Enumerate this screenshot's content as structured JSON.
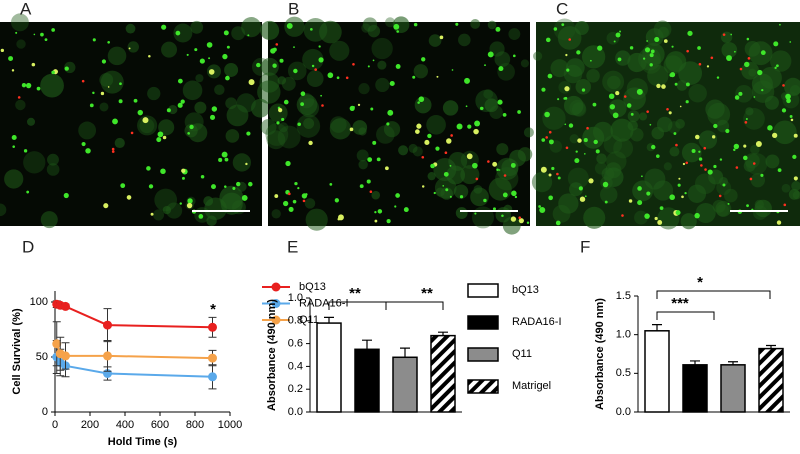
{
  "image_panels": [
    {
      "label": "A"
    },
    {
      "label": "B"
    },
    {
      "label": "C"
    }
  ],
  "chart_data": [
    {
      "type": "line",
      "panel_label": "D",
      "x_label": "Hold Time (s)",
      "y_label": "Cell Survival (%)",
      "x": [
        10,
        30,
        60,
        300,
        900
      ],
      "series": [
        {
          "name": "bQ13",
          "color": "#e8201f",
          "values": [
            98,
            97,
            96,
            79,
            77
          ],
          "errors": [
            3,
            2,
            2,
            15,
            9
          ]
        },
        {
          "name": "RADA16-I",
          "color": "#5aa9ea",
          "values": [
            50,
            45,
            42,
            35,
            32
          ],
          "errors": [
            15,
            12,
            10,
            6,
            11
          ]
        },
        {
          "name": "Q11",
          "color": "#f5a24a",
          "values": [
            62,
            53,
            51,
            51,
            49
          ],
          "errors": [
            20,
            15,
            12,
            14,
            7
          ]
        }
      ],
      "xlim": [
        0,
        1000
      ],
      "xticks": [
        0,
        200,
        400,
        600,
        800,
        1000
      ],
      "ylim": [
        0,
        110
      ],
      "yticks": [
        0,
        50,
        100
      ],
      "annotations": [
        "*"
      ],
      "legend": "upper right"
    },
    {
      "type": "bar",
      "panel_label": "E",
      "y_label": "Absorbance (490 nm)",
      "categories": [
        "bQ13",
        "RADA16-I",
        "Q11",
        "Matrigel"
      ],
      "values": [
        0.78,
        0.55,
        0.48,
        0.67
      ],
      "errors": [
        0.05,
        0.08,
        0.08,
        0.03
      ],
      "colors": [
        "#ffffff",
        "#000000",
        "#8c8c8c",
        "hatch"
      ],
      "ylim": [
        0,
        1.0
      ],
      "yticks": [
        {
          "value": 0,
          "label": "0.0"
        },
        0.2,
        0.4,
        0.6,
        0.8,
        {
          "value": 1,
          "label": "1.0"
        }
      ],
      "annotations": [
        "**",
        "**"
      ],
      "legend": "right"
    },
    {
      "type": "bar",
      "panel_label": "F",
      "y_label": "Absorbance (490 nm)",
      "values": [
        1.05,
        0.61,
        0.61,
        0.82
      ],
      "errors": [
        0.08,
        0.05,
        0.04,
        0.04
      ],
      "colors": [
        "#ffffff",
        "#000000",
        "#8c8c8c",
        "hatch"
      ],
      "ylim": [
        0,
        1.5
      ],
      "yticks": [
        {
          "value": 0,
          "label": "0.0"
        },
        0.5,
        {
          "value": 1,
          "label": "1.0"
        },
        1.5
      ],
      "annotations": [
        "***",
        "*"
      ]
    }
  ]
}
